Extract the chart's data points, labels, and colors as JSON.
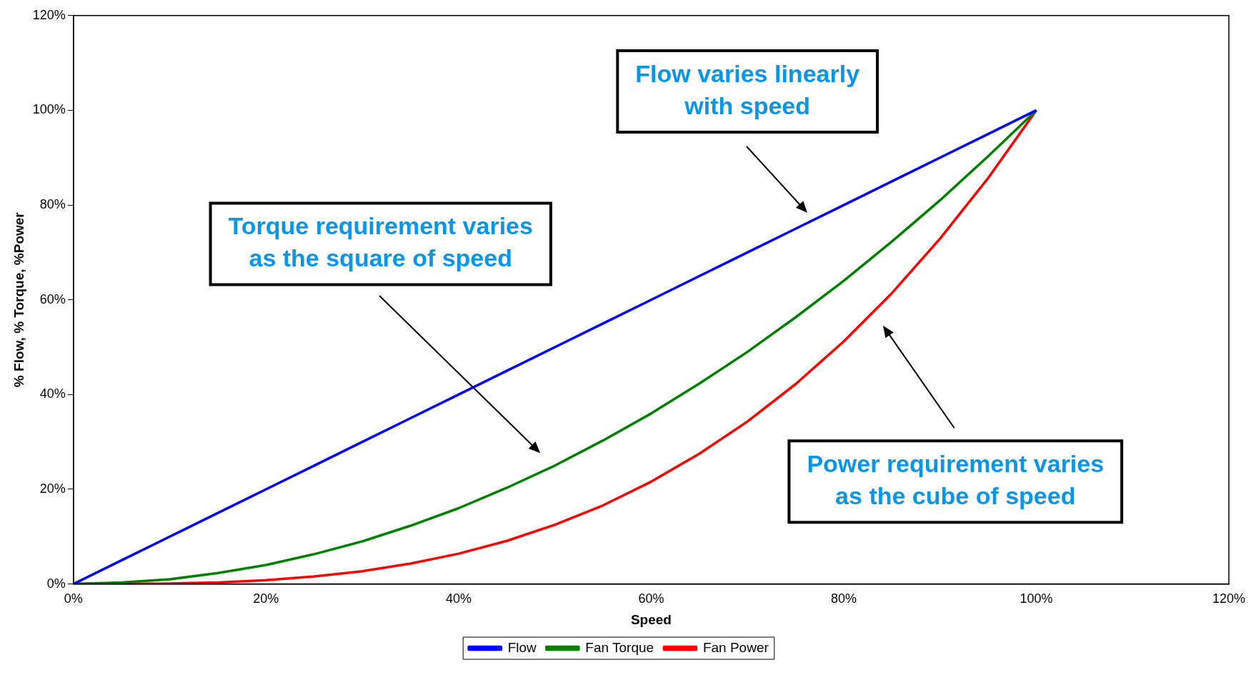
{
  "chart_data": {
    "type": "line",
    "xlabel": "Speed",
    "ylabel": "% Flow, % Torque, %Power",
    "x": [
      0,
      5,
      10,
      15,
      20,
      25,
      30,
      35,
      40,
      45,
      50,
      55,
      60,
      65,
      70,
      75,
      80,
      85,
      90,
      95,
      100
    ],
    "series": [
      {
        "name": "Flow",
        "color": "#0000ff",
        "values": [
          0,
          5,
          10,
          15,
          20,
          25,
          30,
          35,
          40,
          45,
          50,
          55,
          60,
          65,
          70,
          75,
          80,
          85,
          90,
          95,
          100
        ]
      },
      {
        "name": "Fan Torque",
        "color": "#008000",
        "values": [
          0,
          0.3,
          1,
          2.3,
          4,
          6.3,
          9,
          12.3,
          16,
          20.3,
          25,
          30.3,
          36,
          42.3,
          49,
          56.3,
          64,
          72.3,
          81,
          90.3,
          100
        ]
      },
      {
        "name": "Fan Power",
        "color": "#ff0000",
        "values": [
          0,
          0,
          0.1,
          0.3,
          0.8,
          1.6,
          2.7,
          4.3,
          6.4,
          9.1,
          12.5,
          16.6,
          21.6,
          27.5,
          34.3,
          42.2,
          51.2,
          61.4,
          72.9,
          85.7,
          100
        ]
      }
    ],
    "xlim": [
      0,
      120
    ],
    "ylim": [
      0,
      120
    ],
    "xticks": [
      {
        "value": 0,
        "label": "0%"
      },
      {
        "value": 20,
        "label": "20%"
      },
      {
        "value": 40,
        "label": "40%"
      },
      {
        "value": 60,
        "label": "60%"
      },
      {
        "value": 80,
        "label": "80%"
      },
      {
        "value": 100,
        "label": "100%"
      },
      {
        "value": 120,
        "label": "120%"
      }
    ],
    "yticks": [
      {
        "value": 0,
        "label": "0%"
      },
      {
        "value": 20,
        "label": "20%"
      },
      {
        "value": 40,
        "label": "40%"
      },
      {
        "value": 60,
        "label": "60%"
      },
      {
        "value": 80,
        "label": "80%"
      },
      {
        "value": 100,
        "label": "100%"
      },
      {
        "value": 120,
        "label": "120%"
      }
    ],
    "grid": false,
    "legend": "bottom",
    "marker": "none",
    "line_style": "solid",
    "annotations": [
      "Flow varies linearly with speed",
      "Torque requirement varies as the square of speed",
      "Power requirement varies as the cube of speed"
    ]
  }
}
